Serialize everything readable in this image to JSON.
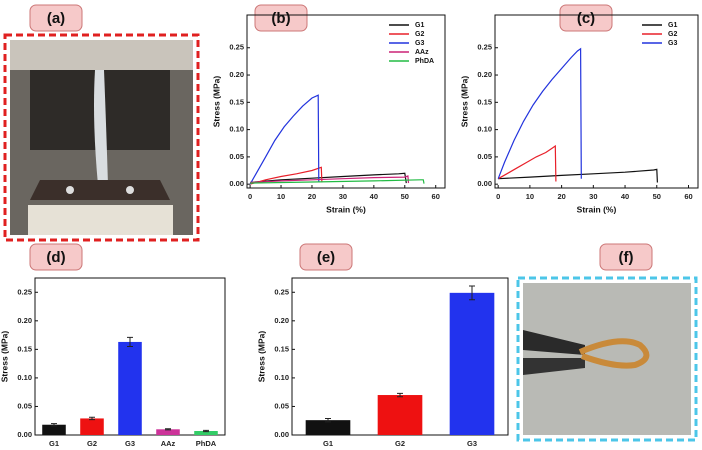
{
  "panel_labels": [
    "(a)",
    "(b)",
    "(c)",
    "(d)",
    "(e)",
    "(f)"
  ],
  "chart_data": [
    {
      "type": "line",
      "x_label": "Strain (%)",
      "y_label": "Stress (MPa)",
      "legend": "upper right",
      "xlim": [
        -1,
        63
      ],
      "xticks": [
        0,
        10,
        20,
        30,
        40,
        50,
        60
      ],
      "ylim": [
        -0.007,
        0.31
      ],
      "yticks": [
        {
          "value": 0,
          "label": "0.00"
        },
        0.05,
        {
          "value": 0.1,
          "label": "0.10"
        },
        0.15,
        {
          "value": 0.2,
          "label": "0.20"
        },
        0.25
      ],
      "series": [
        {
          "name": "G1",
          "color": "#111111",
          "x": [
            0,
            10,
            20,
            30,
            40,
            48,
            50,
            50.5
          ],
          "values": [
            0.003,
            0.008,
            0.011,
            0.014,
            0.017,
            0.019,
            0.02,
            0.002
          ]
        },
        {
          "name": "G2",
          "color": "#e8202a",
          "x": [
            0,
            5,
            10,
            15,
            20,
            23,
            23.2
          ],
          "values": [
            0,
            0.008,
            0.014,
            0.019,
            0.025,
            0.031,
            0.003
          ]
        },
        {
          "name": "G3",
          "color": "#2233dd",
          "x": [
            0,
            2,
            5,
            8,
            11,
            14,
            17,
            20,
            22,
            22.2
          ],
          "values": [
            0,
            0.02,
            0.05,
            0.08,
            0.105,
            0.125,
            0.143,
            0.158,
            0.163,
            0.003
          ]
        },
        {
          "name": "AAz",
          "color": "#cc2277",
          "x": [
            0,
            10,
            20,
            30,
            40,
            50,
            51,
            51.2
          ],
          "values": [
            0.003,
            0.006,
            0.008,
            0.01,
            0.012,
            0.013,
            0.015,
            0.002
          ]
        },
        {
          "name": "PhDA",
          "color": "#22bb44",
          "x": [
            0,
            20,
            40,
            55,
            56,
            56.2
          ],
          "values": [
            0.002,
            0.004,
            0.006,
            0.008,
            0.008,
            0.001
          ]
        }
      ]
    },
    {
      "type": "line",
      "x_label": "Strain (%)",
      "y_label": "Stress (MPa)",
      "legend": "upper right",
      "xlim": [
        -1,
        63
      ],
      "xticks": [
        0,
        10,
        20,
        30,
        40,
        50,
        60
      ],
      "ylim": [
        -0.007,
        0.31
      ],
      "yticks": [
        {
          "value": 0,
          "label": "0.00"
        },
        0.05,
        {
          "value": 0.1,
          "label": "0.10"
        },
        0.15,
        {
          "value": 0.2,
          "label": "0.20"
        },
        0.25
      ],
      "series": [
        {
          "name": "G1",
          "color": "#111111",
          "x": [
            0,
            10,
            20,
            30,
            40,
            49,
            50,
            50.2
          ],
          "values": [
            0.01,
            0.013,
            0.016,
            0.019,
            0.022,
            0.026,
            0.027,
            0.003
          ]
        },
        {
          "name": "G2",
          "color": "#e8202a",
          "x": [
            0,
            3,
            6,
            9,
            12,
            15,
            17,
            18,
            18.2
          ],
          "values": [
            0.01,
            0.02,
            0.03,
            0.04,
            0.05,
            0.058,
            0.066,
            0.07,
            0.005
          ]
        },
        {
          "name": "G3",
          "color": "#2233dd",
          "x": [
            0,
            2,
            5,
            8,
            11,
            14,
            17,
            20,
            23,
            25,
            26,
            26.2
          ],
          "values": [
            0.01,
            0.04,
            0.08,
            0.115,
            0.145,
            0.17,
            0.192,
            0.212,
            0.232,
            0.244,
            0.248,
            0.01
          ]
        }
      ]
    },
    {
      "type": "bar",
      "y_label": "Stress (MPa)",
      "ylim": [
        0,
        0.275
      ],
      "yticks": [
        {
          "value": 0,
          "label": "0.00"
        },
        0.05,
        {
          "value": 0.1,
          "label": "0.10"
        },
        0.15,
        {
          "value": 0.2,
          "label": "0.20"
        },
        0.25
      ],
      "categories": [
        "G1",
        "G2",
        "G3",
        "AAz",
        "PhDA"
      ],
      "values": [
        0.018,
        0.029,
        0.163,
        0.01,
        0.007
      ],
      "errors": [
        0.002,
        0.002,
        0.008,
        0.001,
        0.001
      ],
      "colors": [
        "#111111",
        "#ee1111",
        "#2233ee",
        "#cc3399",
        "#33cc66"
      ]
    },
    {
      "type": "bar",
      "y_label": "Stress (MPa)",
      "ylim": [
        0,
        0.275
      ],
      "yticks": [
        {
          "value": 0,
          "label": "0.00"
        },
        0.05,
        {
          "value": 0.1,
          "label": "0.10"
        },
        0.15,
        {
          "value": 0.2,
          "label": "0.20"
        },
        0.25
      ],
      "categories": [
        "G1",
        "G2",
        "G3"
      ],
      "values": [
        0.026,
        0.07,
        0.249
      ],
      "errors": [
        0.003,
        0.003,
        0.012
      ],
      "colors": [
        "#111111",
        "#ee1111",
        "#2233ee"
      ]
    }
  ]
}
